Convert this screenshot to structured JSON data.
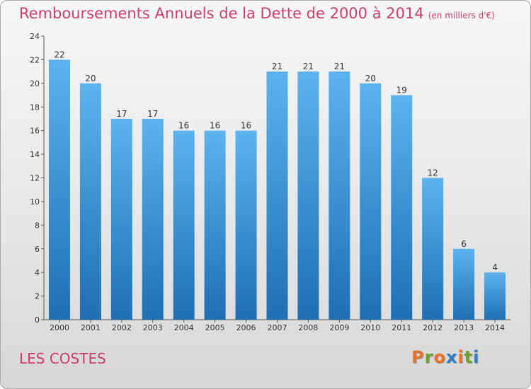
{
  "header": {
    "title": "Remboursements Annuels de la Dette de 2000 à 2014",
    "subtitle": "(en milliers d'€)"
  },
  "footer": {
    "commune": "LES COSTES",
    "brand": "Proxiti",
    "brand_colors": [
      "#e8732a",
      "#6aa32b",
      "#e8732a",
      "#2e7fc4",
      "#e8732a",
      "#6aa32b",
      "#2e7fc4"
    ]
  },
  "colors": {
    "bar_top": "#5db3ee",
    "bar_bottom": "#1f6fb2",
    "title": "#cc3d6c"
  },
  "chart_data": {
    "type": "bar",
    "title": "Remboursements Annuels de la Dette de 2000 à 2014",
    "xlabel": "",
    "ylabel": "",
    "categories": [
      "2000",
      "2001",
      "2002",
      "2003",
      "2004",
      "2005",
      "2006",
      "2007",
      "2008",
      "2009",
      "2010",
      "2011",
      "2012",
      "2013",
      "2014"
    ],
    "values": [
      22,
      20,
      17,
      17,
      16,
      16,
      16,
      21,
      21,
      21,
      20,
      19,
      12,
      6,
      4
    ],
    "ylim": [
      0,
      24
    ],
    "yticks": [
      0,
      2,
      4,
      6,
      8,
      10,
      12,
      14,
      16,
      18,
      20,
      22,
      24
    ],
    "grid": false
  }
}
